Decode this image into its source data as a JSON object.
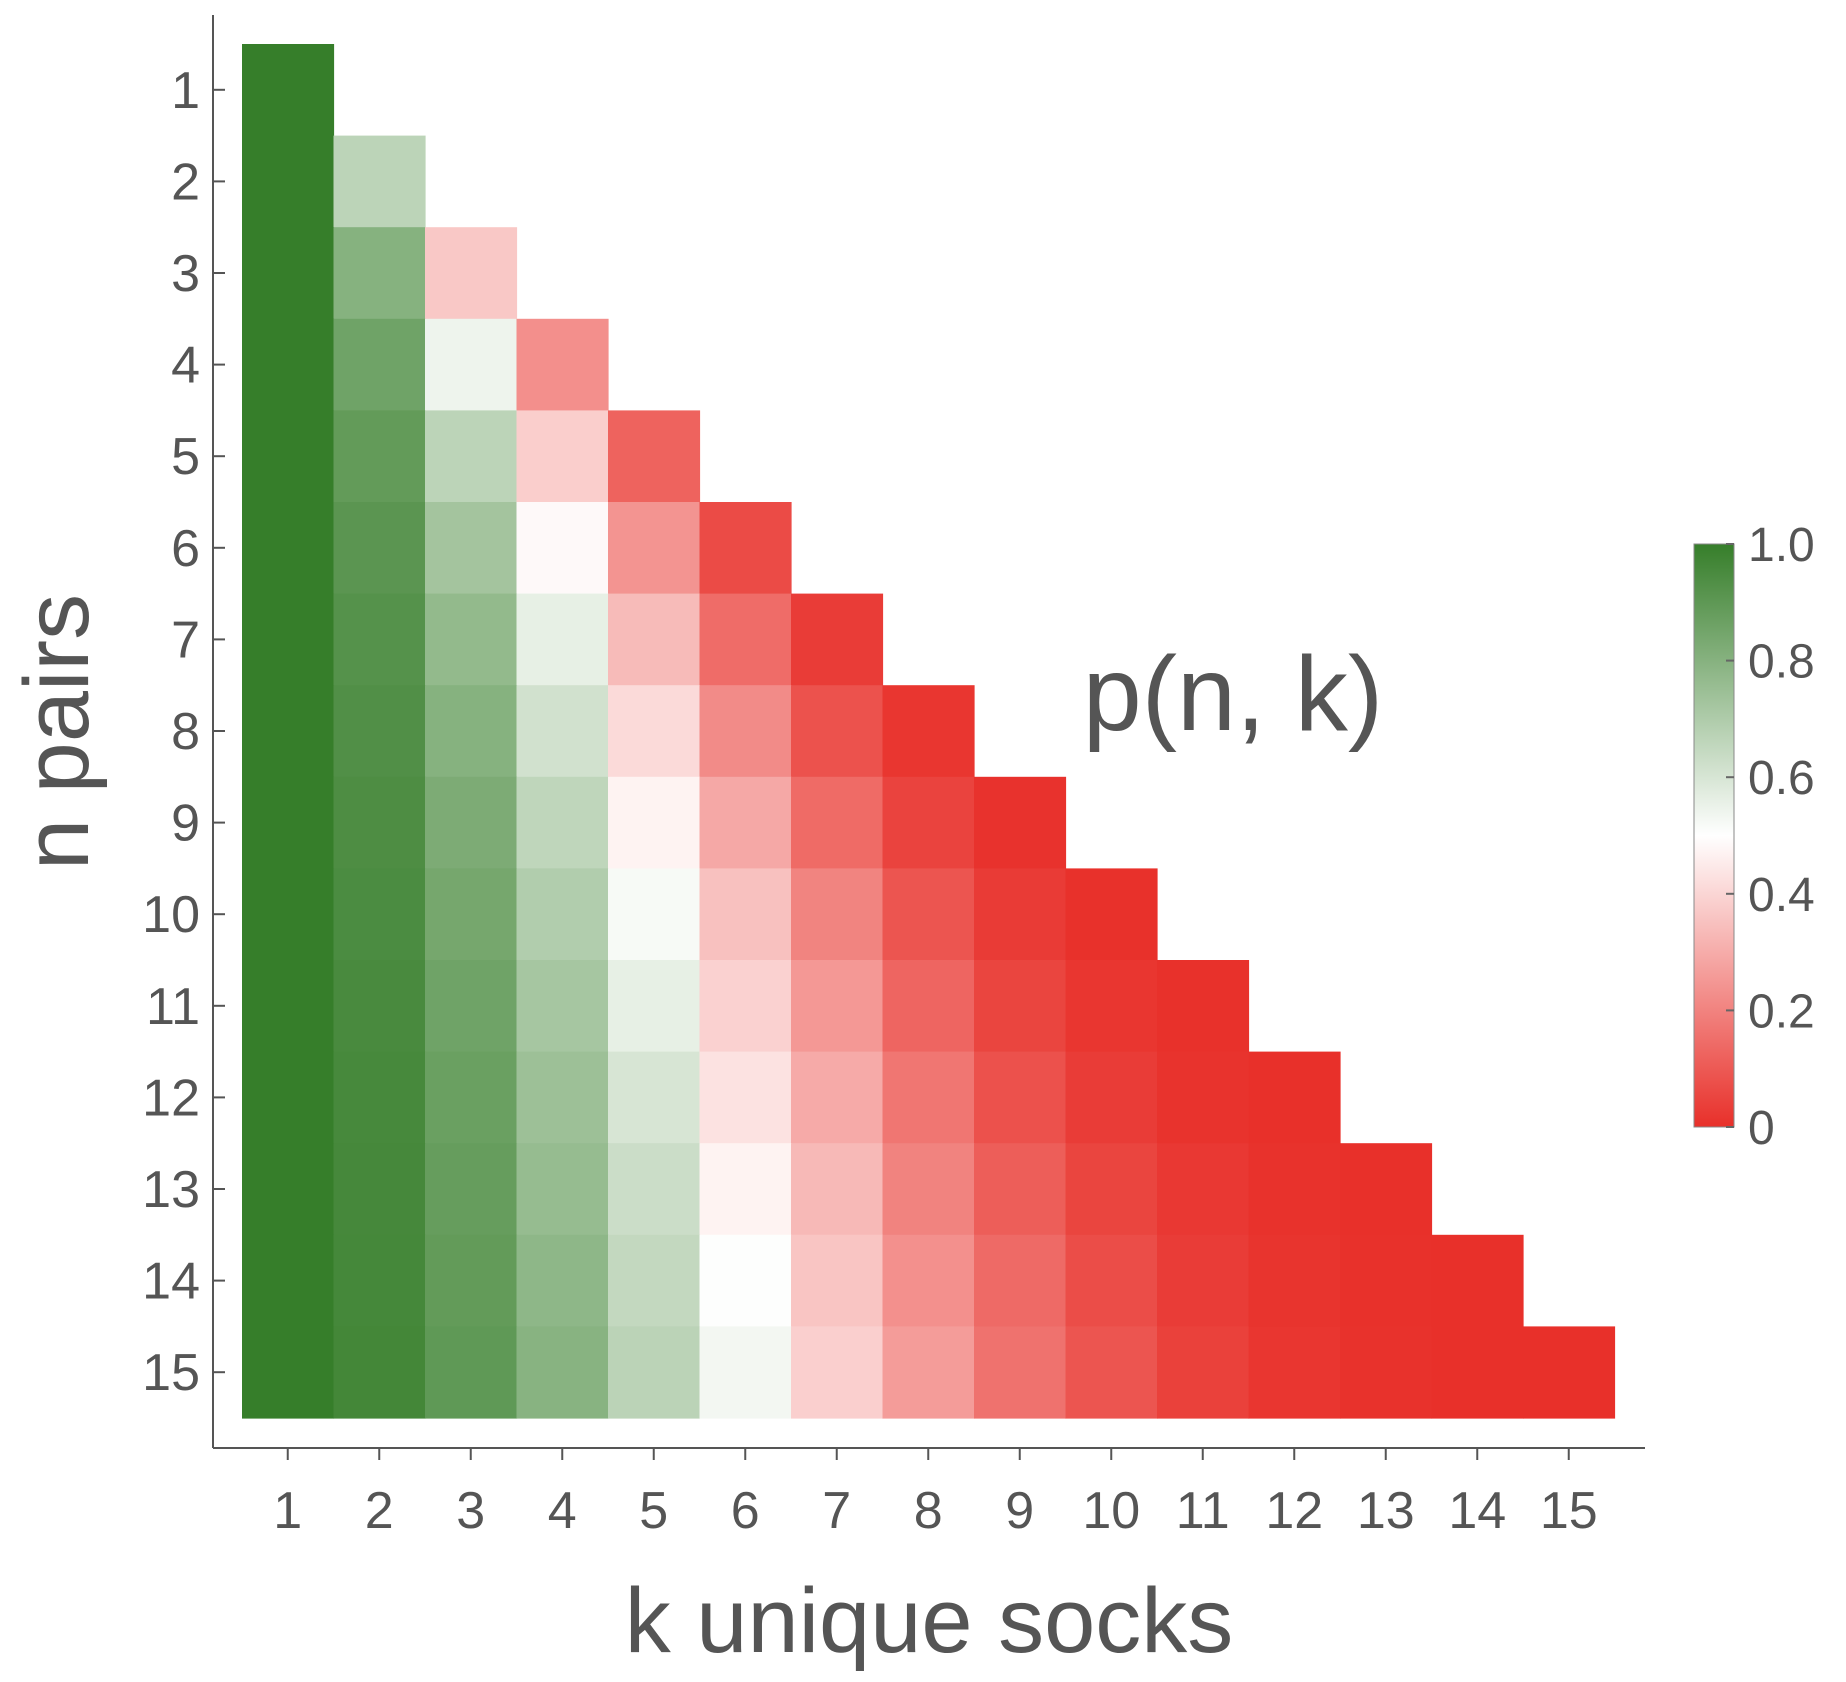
{
  "chart_data": {
    "type": "heatmap",
    "xlabel": "k unique socks",
    "ylabel": "n pairs",
    "annotation": "p(n, k)",
    "x_ticks": [
      "1",
      "2",
      "3",
      "4",
      "5",
      "6",
      "7",
      "8",
      "9",
      "10",
      "11",
      "12",
      "13",
      "14",
      "15"
    ],
    "y_ticks": [
      "1",
      "2",
      "3",
      "4",
      "5",
      "6",
      "7",
      "8",
      "9",
      "10",
      "11",
      "12",
      "13",
      "14",
      "15"
    ],
    "colorbar": {
      "min": 0,
      "max": 1,
      "labels": [
        "0",
        "0.2",
        "0.4",
        "0.6",
        "0.8",
        "1.0"
      ],
      "low_color": "#e8302a",
      "mid_color": "#ffffff",
      "high_color": "#367e2a",
      "mid_value": 0.5
    },
    "rows": [
      [
        1.0
      ],
      [
        1.0,
        0.667
      ],
      [
        1.0,
        0.8,
        0.367
      ],
      [
        1.0,
        0.857,
        0.543,
        0.229
      ],
      [
        1.0,
        0.889,
        0.667,
        0.381,
        0.122
      ],
      [
        1.0,
        0.909,
        0.727,
        0.485,
        0.242,
        0.065
      ],
      [
        1.0,
        0.923,
        0.769,
        0.56,
        0.336,
        0.145,
        0.03
      ],
      [
        1.0,
        0.933,
        0.8,
        0.615,
        0.41,
        0.221,
        0.082,
        0.014
      ],
      [
        1.0,
        0.941,
        0.824,
        0.659,
        0.47,
        0.29,
        0.142,
        0.046,
        0.006
      ],
      [
        1.0,
        0.947,
        0.842,
        0.693,
        0.52,
        0.35,
        0.203,
        0.09,
        0.027,
        0.003
      ],
      [
        1.0,
        0.952,
        0.857,
        0.721,
        0.56,
        0.39,
        0.251,
        0.129,
        0.05,
        0.015,
        0.002
      ],
      [
        1.0,
        0.957,
        0.87,
        0.745,
        0.6,
        0.43,
        0.295,
        0.17,
        0.08,
        0.03,
        0.008,
        0.001
      ],
      [
        1.0,
        0.96,
        0.88,
        0.76,
        0.63,
        0.47,
        0.33,
        0.2,
        0.11,
        0.05,
        0.02,
        0.005,
        0.001
      ],
      [
        1.0,
        0.963,
        0.889,
        0.78,
        0.65,
        0.505,
        0.36,
        0.232,
        0.14,
        0.07,
        0.03,
        0.01,
        0.003,
        0.0
      ],
      [
        1.0,
        0.966,
        0.897,
        0.795,
        0.67,
        0.53,
        0.385,
        0.26,
        0.16,
        0.09,
        0.04,
        0.015,
        0.005,
        0.001,
        0.0
      ]
    ]
  }
}
